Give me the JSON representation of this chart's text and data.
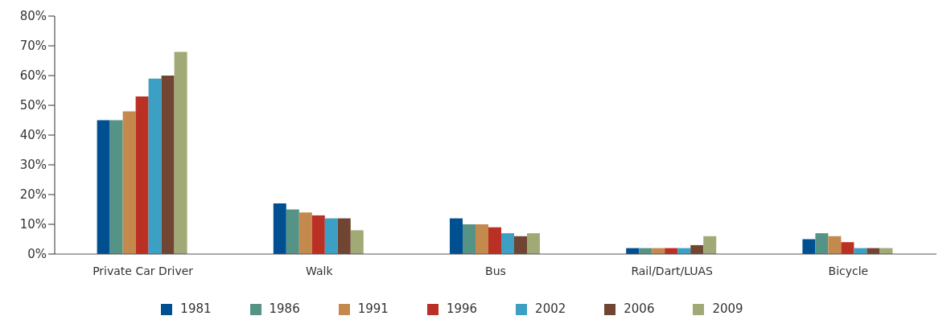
{
  "chart_data": {
    "type": "bar",
    "categories": [
      "Private Car Driver",
      "Walk",
      "Bus",
      "Rail/Dart/LUAS",
      "Bicycle"
    ],
    "series": [
      {
        "name": "1981",
        "color": "#005091",
        "values": [
          45,
          17,
          12,
          2,
          5
        ]
      },
      {
        "name": "1986",
        "color": "#559386",
        "values": [
          45,
          15,
          10,
          2,
          7
        ]
      },
      {
        "name": "1991",
        "color": "#c4894d",
        "values": [
          48,
          14,
          10,
          2,
          6
        ]
      },
      {
        "name": "1996",
        "color": "#bb3024",
        "values": [
          53,
          13,
          9,
          2,
          4
        ]
      },
      {
        "name": "2002",
        "color": "#3ca0c4",
        "values": [
          59,
          12,
          7,
          2,
          2
        ]
      },
      {
        "name": "2006",
        "color": "#704532",
        "values": [
          60,
          12,
          6,
          3,
          2
        ]
      },
      {
        "name": "2009",
        "color": "#a1aa77",
        "values": [
          68,
          8,
          7,
          6,
          2
        ]
      }
    ],
    "ylim": [
      0,
      80
    ],
    "yticks": [
      {
        "value": 0,
        "label": "0%"
      },
      {
        "value": 10,
        "label": "10%"
      },
      {
        "value": 20,
        "label": "20%"
      },
      {
        "value": 30,
        "label": "30%"
      },
      {
        "value": 40,
        "label": "40%"
      },
      {
        "value": 50,
        "label": "50%"
      },
      {
        "value": 60,
        "label": "60%"
      },
      {
        "value": 70,
        "label": "70%"
      },
      {
        "value": 80,
        "label": "80%"
      }
    ],
    "grid": false,
    "legend": "bottom"
  }
}
